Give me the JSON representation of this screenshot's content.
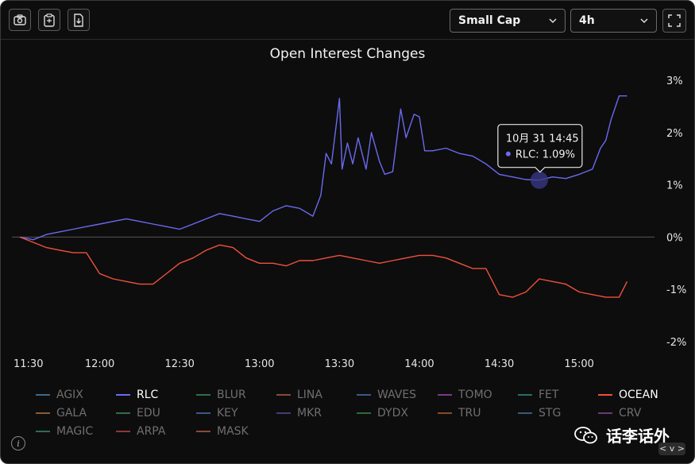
{
  "toolbar": {
    "screenshot_icon": "camera-icon",
    "copy_icon": "clipboard-icon",
    "download_icon": "download-file-icon",
    "category_select": "Small Cap",
    "interval_select": "4h",
    "fullscreen_icon": "fullscreen-icon"
  },
  "chart_data": {
    "type": "line",
    "title": "Open Interest Changes",
    "x_ticks": [
      "11:30",
      "12:00",
      "12:30",
      "13:00",
      "13:30",
      "14:00",
      "14:30",
      "15:00"
    ],
    "y_ticks": [
      "3%",
      "2%",
      "1%",
      "0%",
      "-1%",
      "-2%"
    ],
    "ylim": [
      -2,
      3
    ],
    "xlim_minutes": [
      690,
      925
    ],
    "zero_line": true,
    "series": [
      {
        "name": "RLC",
        "color": "#6a6af0",
        "x": [
          "11:30",
          "11:35",
          "11:40",
          "11:45",
          "11:50",
          "11:55",
          "12:00",
          "12:05",
          "12:10",
          "12:15",
          "12:20",
          "12:25",
          "12:30",
          "12:35",
          "12:40",
          "12:45",
          "12:50",
          "12:55",
          "13:00",
          "13:05",
          "13:10",
          "13:15",
          "13:20",
          "13:23",
          "13:25",
          "13:27",
          "13:30",
          "13:31",
          "13:33",
          "13:35",
          "13:37",
          "13:40",
          "13:42",
          "13:45",
          "13:47",
          "13:50",
          "13:53",
          "13:55",
          "13:58",
          "14:00",
          "14:02",
          "14:05",
          "14:10",
          "14:15",
          "14:20",
          "14:25",
          "14:30",
          "14:35",
          "14:40",
          "14:45",
          "14:50",
          "14:55",
          "15:00",
          "15:05",
          "15:08",
          "15:10",
          "15:12",
          "15:15",
          "15:18"
        ],
        "y": [
          0.0,
          -0.05,
          0.05,
          0.1,
          0.15,
          0.2,
          0.25,
          0.3,
          0.35,
          0.3,
          0.25,
          0.2,
          0.15,
          0.25,
          0.35,
          0.45,
          0.4,
          0.35,
          0.3,
          0.5,
          0.6,
          0.55,
          0.4,
          0.8,
          1.6,
          1.4,
          2.65,
          1.3,
          1.8,
          1.4,
          1.9,
          1.3,
          2.0,
          1.45,
          1.2,
          1.25,
          2.45,
          1.9,
          2.35,
          2.3,
          1.65,
          1.65,
          1.7,
          1.6,
          1.55,
          1.4,
          1.2,
          1.15,
          1.1,
          1.09,
          1.15,
          1.12,
          1.2,
          1.3,
          1.7,
          1.85,
          2.25,
          2.7,
          2.7
        ]
      },
      {
        "name": "OCEAN",
        "color": "#f0503c",
        "x": [
          "11:30",
          "11:35",
          "11:40",
          "11:45",
          "11:50",
          "11:55",
          "12:00",
          "12:05",
          "12:10",
          "12:15",
          "12:20",
          "12:25",
          "12:30",
          "12:35",
          "12:40",
          "12:45",
          "12:50",
          "12:55",
          "13:00",
          "13:05",
          "13:10",
          "13:15",
          "13:20",
          "13:25",
          "13:30",
          "13:35",
          "13:40",
          "13:45",
          "13:50",
          "13:55",
          "14:00",
          "14:05",
          "14:10",
          "14:15",
          "14:20",
          "14:25",
          "14:30",
          "14:35",
          "14:40",
          "14:45",
          "14:50",
          "14:55",
          "15:00",
          "15:05",
          "15:10",
          "15:15",
          "15:18"
        ],
        "y": [
          0.0,
          -0.1,
          -0.2,
          -0.25,
          -0.3,
          -0.3,
          -0.7,
          -0.8,
          -0.85,
          -0.9,
          -0.9,
          -0.7,
          -0.5,
          -0.4,
          -0.25,
          -0.15,
          -0.2,
          -0.4,
          -0.5,
          -0.5,
          -0.55,
          -0.45,
          -0.45,
          -0.4,
          -0.35,
          -0.4,
          -0.45,
          -0.5,
          -0.45,
          -0.4,
          -0.35,
          -0.35,
          -0.4,
          -0.5,
          -0.6,
          -0.6,
          -1.1,
          -1.15,
          -1.05,
          -0.8,
          -0.85,
          -0.9,
          -1.05,
          -1.1,
          -1.15,
          -1.15,
          -0.85
        ]
      }
    ],
    "tooltip": {
      "time": "10月 31 14:45",
      "series": "RLC",
      "value_text": "RLC: 1.09%",
      "x": "14:45",
      "y": 1.09
    }
  },
  "legend": [
    {
      "name": "AGIX",
      "color": "#3c6a8c",
      "active": false
    },
    {
      "name": "RLC",
      "color": "#6a6af0",
      "active": true
    },
    {
      "name": "BLUR",
      "color": "#2f6f4f",
      "active": false
    },
    {
      "name": "LINA",
      "color": "#8a4a3a",
      "active": false
    },
    {
      "name": "WAVES",
      "color": "#3c5a8a",
      "active": false
    },
    {
      "name": "TOMO",
      "color": "#7a3a8a",
      "active": false
    },
    {
      "name": "FET",
      "color": "#2f6a6a",
      "active": false
    },
    {
      "name": "OCEAN",
      "color": "#f0503c",
      "active": true
    },
    {
      "name": "GALA",
      "color": "#8a5a3a",
      "active": false
    },
    {
      "name": "EDU",
      "color": "#3a6a4a",
      "active": false
    },
    {
      "name": "KEY",
      "color": "#3a5a8a",
      "active": false
    },
    {
      "name": "MKR",
      "color": "#4a3a7a",
      "active": false
    },
    {
      "name": "DYDX",
      "color": "#2f6a3a",
      "active": false
    },
    {
      "name": "TRU",
      "color": "#8a4a2a",
      "active": false
    },
    {
      "name": "STG",
      "color": "#3a5a7a",
      "active": false
    },
    {
      "name": "CRV",
      "color": "#6a3a7a",
      "active": false
    },
    {
      "name": "MAGIC",
      "color": "#2f6a5a",
      "active": false
    },
    {
      "name": "ARPA",
      "color": "#8a3a3a",
      "active": false
    },
    {
      "name": "MASK",
      "color": "#8a4a3a",
      "active": false
    }
  ],
  "footer": {
    "info_icon": "info-icon",
    "watermark_icon": "wechat-icon",
    "watermark_text": "话李话外",
    "version_text": "< v >"
  }
}
